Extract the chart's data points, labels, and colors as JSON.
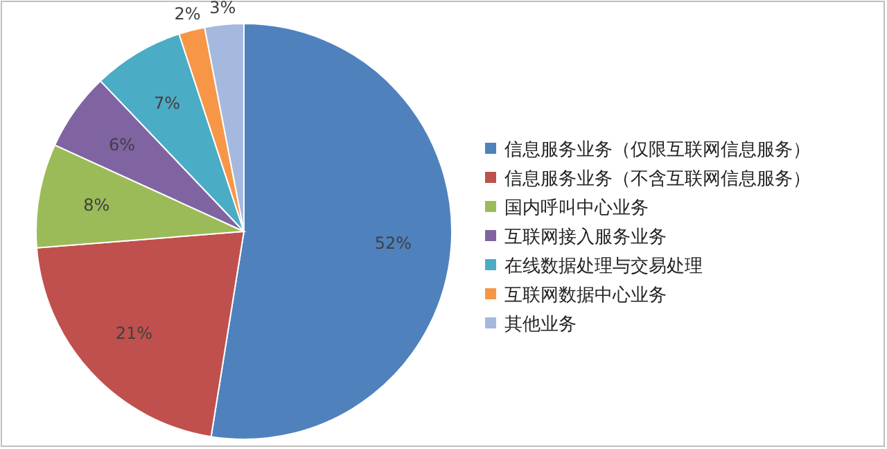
{
  "chart_data": {
    "type": "pie",
    "categories": [
      "信息服务业务（仅限互联网信息服务）",
      "信息服务业务（不含互联网信息服务）",
      "国内呼叫中心业务",
      "互联网接入服务业务",
      "在线数据处理与交易处理",
      "互联网数据中心业务",
      "其他业务"
    ],
    "values": [
      52,
      21,
      8,
      6,
      7,
      2,
      3
    ],
    "value_labels": [
      "52%",
      "21%",
      "8%",
      "6%",
      "7%",
      "2%",
      "3%"
    ],
    "colors": [
      "#4f81bd",
      "#c0504d",
      "#9bbb59",
      "#8064a2",
      "#4bacc6",
      "#f79646",
      "#a5b9de"
    ],
    "legend": "right"
  }
}
